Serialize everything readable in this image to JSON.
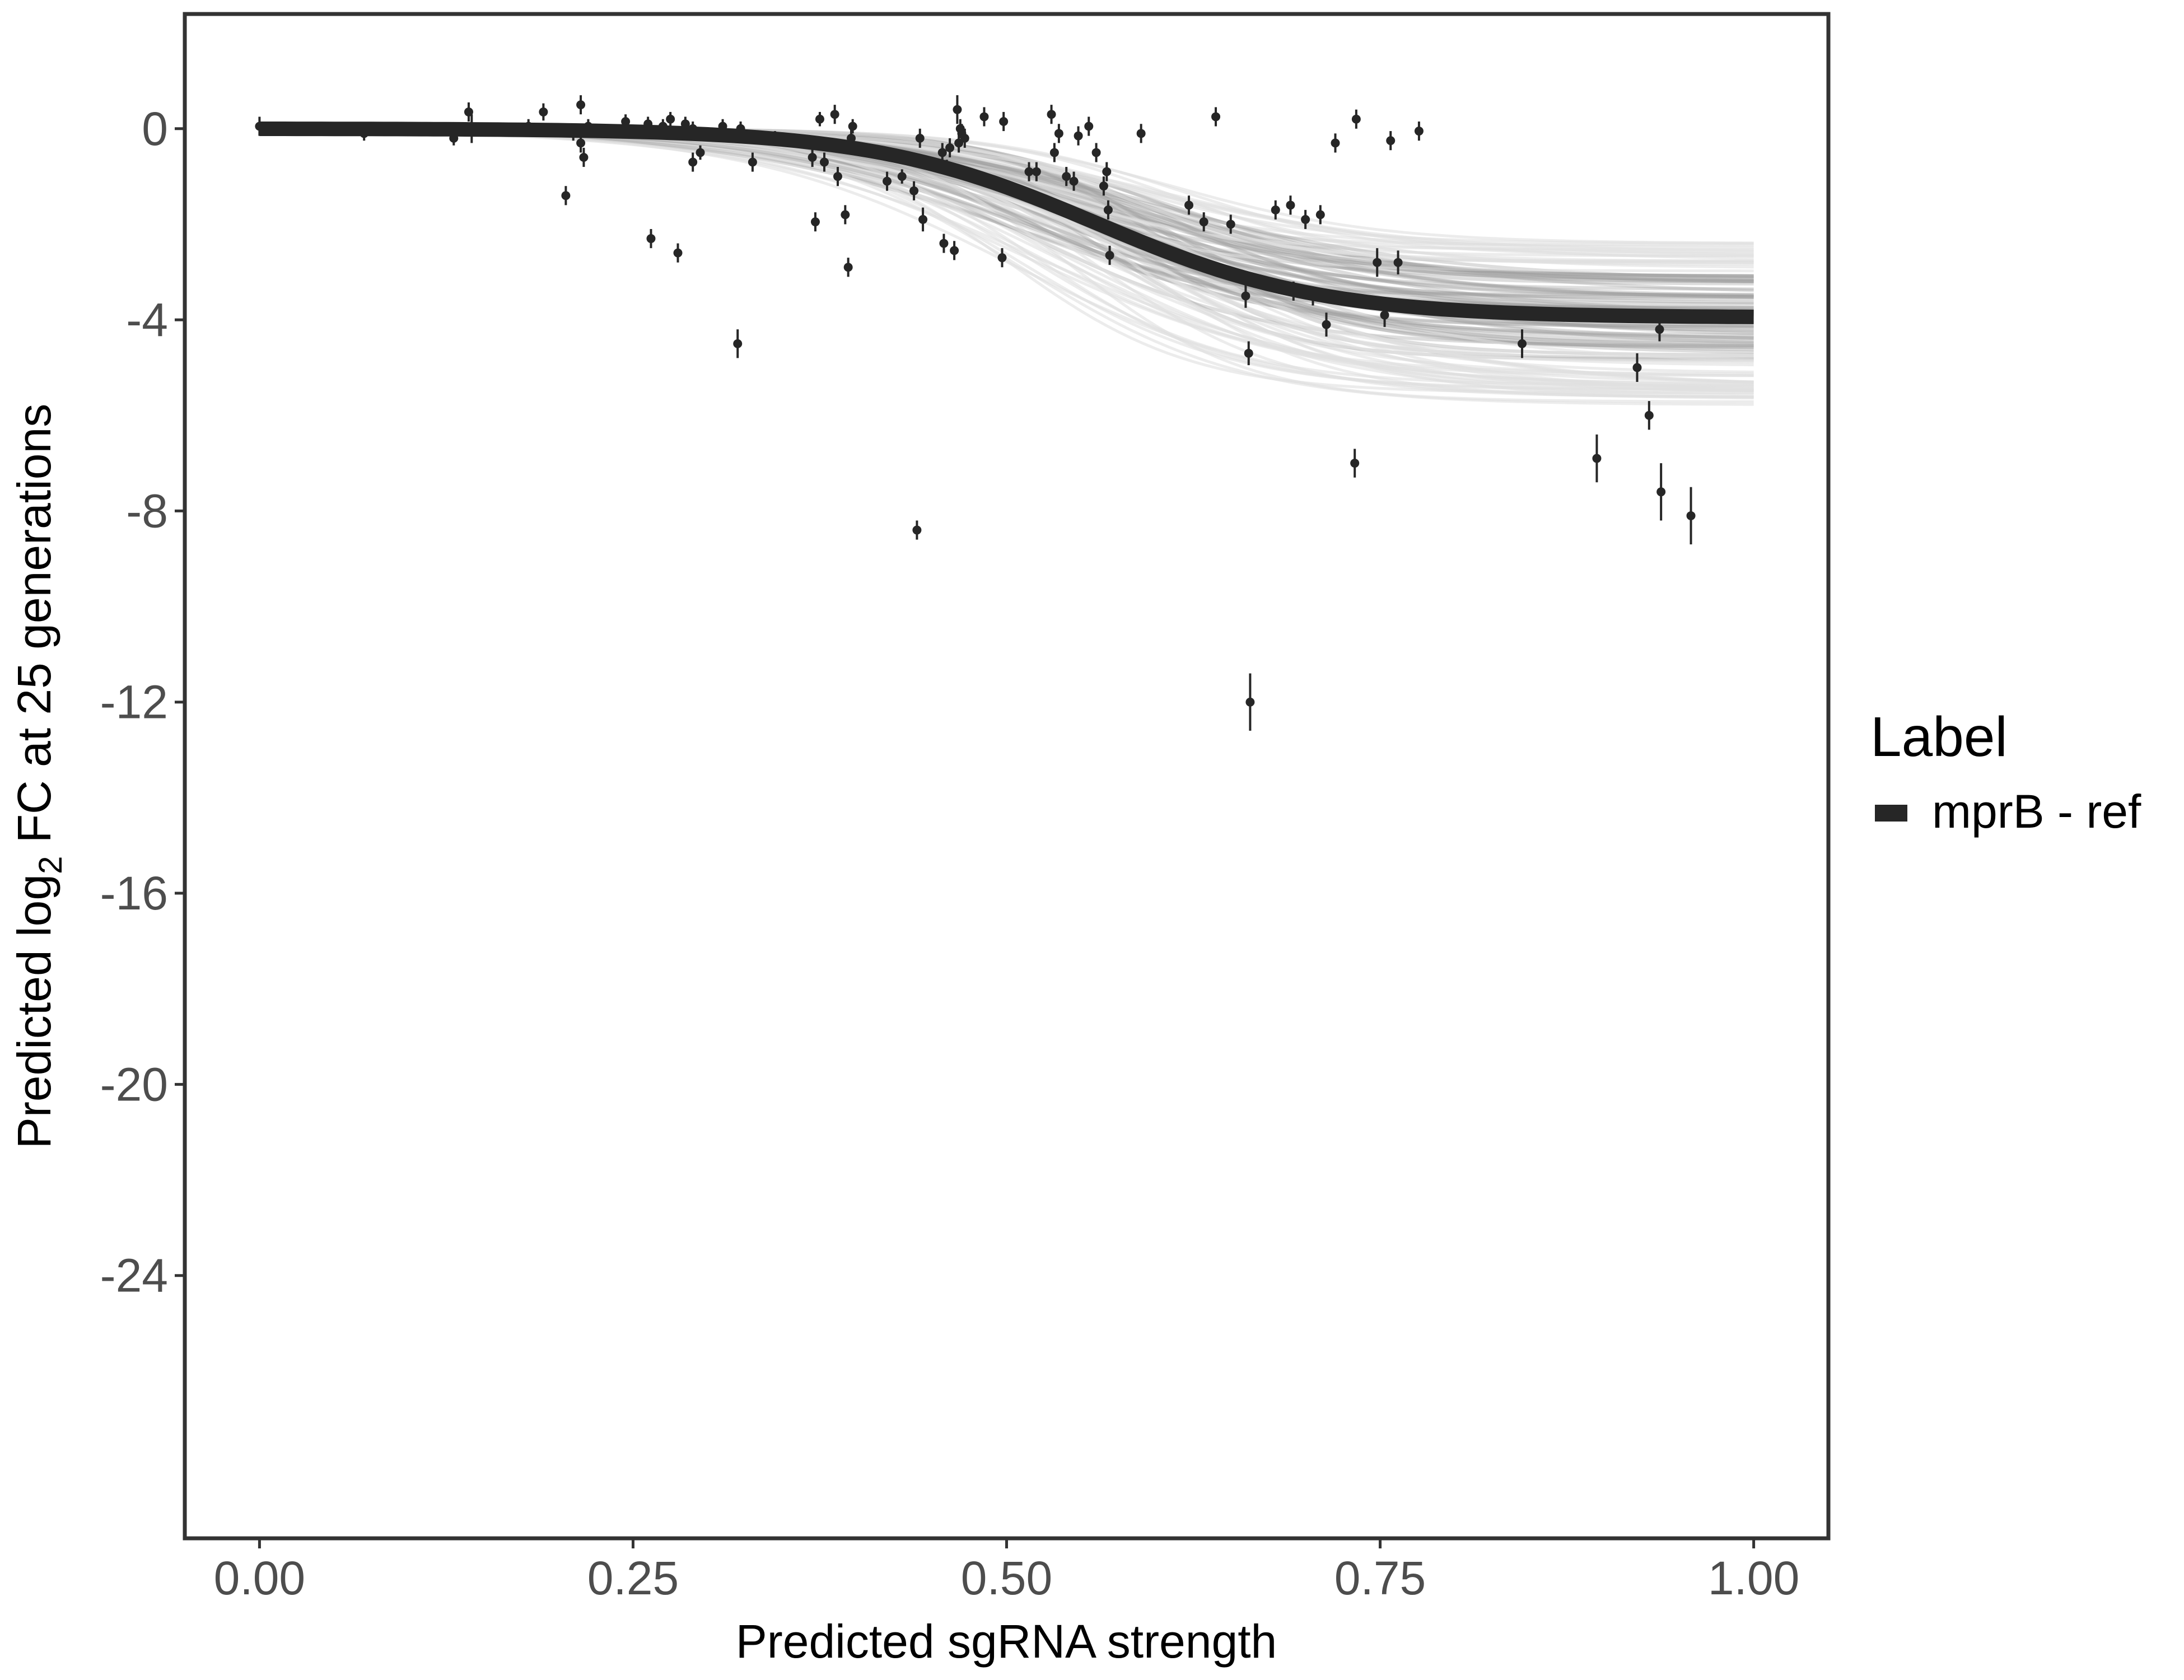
{
  "chart_data": {
    "type": "scatter",
    "title": "",
    "xlabel": "Predicted sgRNA strength",
    "ylabel_parts": {
      "pre": "Predicted  log",
      "sub": "2",
      "post": " FC at 25 generations"
    },
    "xlim": [
      -0.05,
      1.05
    ],
    "ylim": [
      -29.5,
      2.4
    ],
    "xticks": [
      {
        "value": 0.0,
        "label": "0.00"
      },
      {
        "value": 0.25,
        "label": "0.25"
      },
      {
        "value": 0.5,
        "label": "0.50"
      },
      {
        "value": 0.75,
        "label": "0.75"
      },
      {
        "value": 1.0,
        "label": "1.00"
      }
    ],
    "yticks": [
      {
        "value": 0,
        "label": "0"
      },
      {
        "value": -4,
        "label": "-4"
      },
      {
        "value": -8,
        "label": "-8"
      },
      {
        "value": -12,
        "label": "-12"
      },
      {
        "value": -16,
        "label": "-16"
      },
      {
        "value": -20,
        "label": "-20"
      },
      {
        "value": -24,
        "label": "-24"
      }
    ],
    "grid": false,
    "legend": {
      "title": "Label",
      "position": "right",
      "entries": [
        {
          "label": "mprB - ref",
          "color": "#262626"
        }
      ]
    },
    "fit_curve": {
      "name": "mprB - ref",
      "form": "logistic",
      "upper": 0.0,
      "lower": -3.95,
      "midpoint": 0.56,
      "scale": 0.075,
      "x_range": [
        0.0,
        1.0
      ],
      "color": "#262626"
    },
    "band": {
      "color": "#9e9e9e",
      "faint_color": "#e0e0e0",
      "upper_at_x1": -2.4,
      "lower_at_x1": -5.8
    },
    "colors": {
      "points": "#262626",
      "axis": "#333333",
      "tick_text": "#4d4d4d",
      "label_text": "#000000"
    },
    "points": [
      {
        "x": 0.0,
        "y": 0.05,
        "err": 0.2
      },
      {
        "x": 0.025,
        "y": 0.0,
        "err": 0.12
      },
      {
        "x": 0.07,
        "y": -0.1,
        "err": 0.15
      },
      {
        "x": 0.13,
        "y": -0.2,
        "err": 0.15
      },
      {
        "x": 0.14,
        "y": 0.35,
        "err": 0.2
      },
      {
        "x": 0.142,
        "y": 0.0,
        "err": 0.3
      },
      {
        "x": 0.18,
        "y": 0.05,
        "err": 0.15
      },
      {
        "x": 0.19,
        "y": 0.35,
        "err": 0.18
      },
      {
        "x": 0.205,
        "y": -1.4,
        "err": 0.2
      },
      {
        "x": 0.21,
        "y": -0.1,
        "err": 0.15
      },
      {
        "x": 0.215,
        "y": 0.5,
        "err": 0.2
      },
      {
        "x": 0.215,
        "y": -0.3,
        "err": 0.2
      },
      {
        "x": 0.217,
        "y": -0.6,
        "err": 0.2
      },
      {
        "x": 0.22,
        "y": 0.05,
        "err": 0.15
      },
      {
        "x": 0.245,
        "y": 0.15,
        "err": 0.15
      },
      {
        "x": 0.26,
        "y": 0.1,
        "err": 0.15
      },
      {
        "x": 0.262,
        "y": -2.3,
        "err": 0.2
      },
      {
        "x": 0.27,
        "y": 0.05,
        "err": 0.15
      },
      {
        "x": 0.275,
        "y": 0.2,
        "err": 0.15
      },
      {
        "x": 0.28,
        "y": -2.6,
        "err": 0.2
      },
      {
        "x": 0.285,
        "y": 0.1,
        "err": 0.15
      },
      {
        "x": 0.29,
        "y": 0.0,
        "err": 0.15
      },
      {
        "x": 0.29,
        "y": -0.7,
        "err": 0.2
      },
      {
        "x": 0.295,
        "y": -0.5,
        "err": 0.15
      },
      {
        "x": 0.31,
        "y": 0.05,
        "err": 0.15
      },
      {
        "x": 0.32,
        "y": -4.5,
        "err": 0.3
      },
      {
        "x": 0.322,
        "y": 0.0,
        "err": 0.15
      },
      {
        "x": 0.33,
        "y": -0.7,
        "err": 0.2
      },
      {
        "x": 0.345,
        "y": -0.2,
        "err": 0.15
      },
      {
        "x": 0.37,
        "y": -0.6,
        "err": 0.2
      },
      {
        "x": 0.372,
        "y": -1.95,
        "err": 0.2
      },
      {
        "x": 0.375,
        "y": 0.2,
        "err": 0.15
      },
      {
        "x": 0.378,
        "y": -0.7,
        "err": 0.2
      },
      {
        "x": 0.385,
        "y": 0.3,
        "err": 0.2
      },
      {
        "x": 0.387,
        "y": -1.0,
        "err": 0.2
      },
      {
        "x": 0.392,
        "y": -1.8,
        "err": 0.2
      },
      {
        "x": 0.394,
        "y": -2.9,
        "err": 0.2
      },
      {
        "x": 0.396,
        "y": -0.2,
        "err": 0.2
      },
      {
        "x": 0.397,
        "y": 0.05,
        "err": 0.15
      },
      {
        "x": 0.42,
        "y": -1.1,
        "err": 0.2
      },
      {
        "x": 0.43,
        "y": -1.0,
        "err": 0.15
      },
      {
        "x": 0.438,
        "y": -1.3,
        "err": 0.2
      },
      {
        "x": 0.44,
        "y": -8.4,
        "err": 0.2
      },
      {
        "x": 0.442,
        "y": -0.2,
        "err": 0.2
      },
      {
        "x": 0.444,
        "y": -1.9,
        "err": 0.25
      },
      {
        "x": 0.457,
        "y": -0.5,
        "err": 0.2
      },
      {
        "x": 0.458,
        "y": -2.4,
        "err": 0.2
      },
      {
        "x": 0.46,
        "y": -0.8,
        "err": 0.15
      },
      {
        "x": 0.462,
        "y": -0.4,
        "err": 0.2
      },
      {
        "x": 0.465,
        "y": -2.55,
        "err": 0.2
      },
      {
        "x": 0.467,
        "y": 0.4,
        "err": 0.3
      },
      {
        "x": 0.468,
        "y": -0.3,
        "err": 0.2
      },
      {
        "x": 0.469,
        "y": 0.0,
        "err": 0.2
      },
      {
        "x": 0.47,
        "y": -0.1,
        "err": 0.2
      },
      {
        "x": 0.472,
        "y": -0.2,
        "err": 0.2
      },
      {
        "x": 0.485,
        "y": 0.25,
        "err": 0.2
      },
      {
        "x": 0.497,
        "y": -2.7,
        "err": 0.2
      },
      {
        "x": 0.498,
        "y": 0.15,
        "err": 0.2
      },
      {
        "x": 0.515,
        "y": -0.9,
        "err": 0.2
      },
      {
        "x": 0.52,
        "y": -0.9,
        "err": 0.2
      },
      {
        "x": 0.53,
        "y": 0.3,
        "err": 0.2
      },
      {
        "x": 0.532,
        "y": -0.5,
        "err": 0.2
      },
      {
        "x": 0.535,
        "y": -0.1,
        "err": 0.2
      },
      {
        "x": 0.54,
        "y": -1.0,
        "err": 0.2
      },
      {
        "x": 0.545,
        "y": -1.1,
        "err": 0.2
      },
      {
        "x": 0.548,
        "y": -0.15,
        "err": 0.2
      },
      {
        "x": 0.555,
        "y": 0.05,
        "err": 0.2
      },
      {
        "x": 0.56,
        "y": -0.5,
        "err": 0.2
      },
      {
        "x": 0.565,
        "y": -1.2,
        "err": 0.2
      },
      {
        "x": 0.567,
        "y": -0.9,
        "err": 0.2
      },
      {
        "x": 0.568,
        "y": -1.7,
        "err": 0.2
      },
      {
        "x": 0.569,
        "y": -2.65,
        "err": 0.2
      },
      {
        "x": 0.59,
        "y": -0.1,
        "err": 0.2
      },
      {
        "x": 0.622,
        "y": -1.6,
        "err": 0.2
      },
      {
        "x": 0.632,
        "y": -1.95,
        "err": 0.2
      },
      {
        "x": 0.64,
        "y": 0.25,
        "err": 0.2
      },
      {
        "x": 0.65,
        "y": -2.0,
        "err": 0.2
      },
      {
        "x": 0.66,
        "y": -3.5,
        "err": 0.25
      },
      {
        "x": 0.662,
        "y": -4.7,
        "err": 0.25
      },
      {
        "x": 0.663,
        "y": -12.0,
        "err": 0.6
      },
      {
        "x": 0.68,
        "y": -1.7,
        "err": 0.2
      },
      {
        "x": 0.69,
        "y": -1.6,
        "err": 0.2
      },
      {
        "x": 0.692,
        "y": -3.4,
        "err": 0.2
      },
      {
        "x": 0.7,
        "y": -1.9,
        "err": 0.2
      },
      {
        "x": 0.705,
        "y": -3.5,
        "err": 0.2
      },
      {
        "x": 0.71,
        "y": -1.8,
        "err": 0.2
      },
      {
        "x": 0.714,
        "y": -4.1,
        "err": 0.25
      },
      {
        "x": 0.72,
        "y": -0.3,
        "err": 0.2
      },
      {
        "x": 0.733,
        "y": -7.0,
        "err": 0.3
      },
      {
        "x": 0.734,
        "y": 0.2,
        "err": 0.2
      },
      {
        "x": 0.748,
        "y": -2.8,
        "err": 0.3
      },
      {
        "x": 0.753,
        "y": -3.9,
        "err": 0.25
      },
      {
        "x": 0.757,
        "y": -0.25,
        "err": 0.2
      },
      {
        "x": 0.762,
        "y": -2.8,
        "err": 0.25
      },
      {
        "x": 0.776,
        "y": -0.05,
        "err": 0.2
      },
      {
        "x": 0.845,
        "y": -4.5,
        "err": 0.3
      },
      {
        "x": 0.895,
        "y": -6.9,
        "err": 0.5
      },
      {
        "x": 0.922,
        "y": -5.0,
        "err": 0.3
      },
      {
        "x": 0.93,
        "y": -6.0,
        "err": 0.3
      },
      {
        "x": 0.937,
        "y": -4.2,
        "err": 0.25
      },
      {
        "x": 0.938,
        "y": -7.6,
        "err": 0.6
      },
      {
        "x": 0.958,
        "y": -8.1,
        "err": 0.6
      }
    ]
  }
}
